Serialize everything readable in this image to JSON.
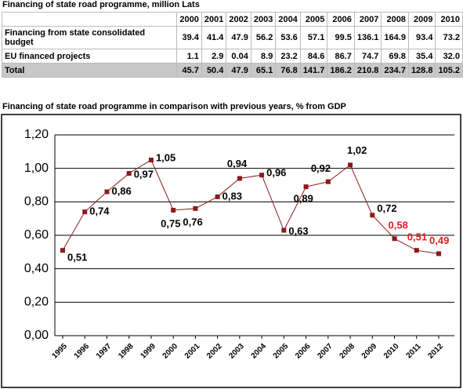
{
  "table": {
    "title": "Financing of state road programme, million Lats",
    "header": [
      "2000",
      "2001",
      "2002",
      "2003",
      "2004",
      "2005",
      "2006",
      "2007",
      "2008",
      "2009",
      "2010"
    ],
    "rows": [
      [
        "Financing from state consolidated budget",
        "39.4",
        "41.4",
        "47.9",
        "56.2",
        "53.6",
        "57.1",
        "99.5",
        "136.1",
        "164.9",
        "93.4",
        "73.2"
      ],
      [
        "EU financed projects",
        "1.1",
        "2.9",
        "0.04",
        "8.9",
        "23.2",
        "84.6",
        "86.7",
        "74.7",
        "69.8",
        "35.4",
        "32.0"
      ],
      [
        "Total",
        "45.7",
        "50.4",
        "47.9",
        "65.1",
        "76.8",
        "141.7",
        "186.2",
        "210.8",
        "234.7",
        "128.8",
        "105.2"
      ]
    ]
  },
  "chart_data": {
    "type": "line",
    "title": "Financing of state road programme in comparison with previous years, % from GDP",
    "categories": [
      "1995",
      "1996",
      "1997",
      "1998",
      "1999",
      "2000",
      "2001",
      "2002",
      "2003",
      "2004",
      "2005",
      "2006",
      "2007",
      "2008",
      "2009",
      "2010",
      "2011",
      "2012"
    ],
    "values": [
      0.51,
      0.74,
      0.86,
      0.97,
      1.05,
      0.75,
      0.76,
      0.83,
      0.94,
      0.96,
      0.63,
      0.89,
      0.92,
      1.02,
      0.72,
      0.58,
      0.51,
      0.49
    ],
    "value_labels": [
      "0,51",
      "0,74",
      "0,86",
      "0,97",
      "1,05",
      "0,75",
      "0,76",
      "0,83",
      "0,94",
      "0,96",
      "0,63",
      "0,89",
      "0,92",
      "1,02",
      "0,72",
      "0,58",
      "0,51",
      "0,49"
    ],
    "value_label_colors": [
      "#000000",
      "#000000",
      "#000000",
      "#000000",
      "#000000",
      "#000000",
      "#000000",
      "#000000",
      "#000000",
      "#000000",
      "#000000",
      "#000000",
      "#000000",
      "#000000",
      "#000000",
      "#e02020",
      "#e02020",
      "#e02020"
    ],
    "color": "#8b1a1a",
    "ylim": [
      0,
      1.2
    ],
    "yticks": [
      {
        "value": 0,
        "label": "0,00"
      },
      {
        "value": 0.2,
        "label": "0,20"
      },
      {
        "value": 0.4,
        "label": "0,40"
      },
      {
        "value": 0.6,
        "label": "0,60"
      },
      {
        "value": 0.8,
        "label": "0,80"
      },
      {
        "value": 1.0,
        "label": "1,00"
      },
      {
        "value": 1.2,
        "label": "1,20"
      }
    ],
    "grid": true
  }
}
